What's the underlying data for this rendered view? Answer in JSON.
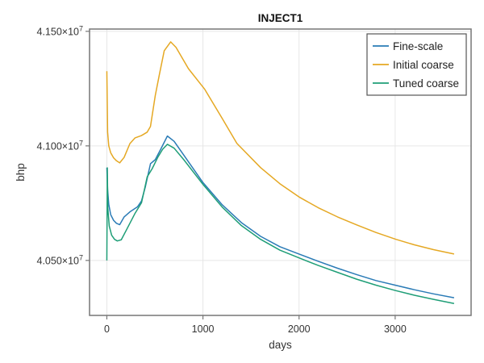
{
  "chart_data": {
    "type": "line",
    "title": "INJECT1",
    "xlabel": "days",
    "ylabel": "bhp",
    "xlim": [
      -180,
      3790
    ],
    "ylim": [
      40260000,
      41510000
    ],
    "xticks": [
      0,
      1000,
      2000,
      3000
    ],
    "xtick_labels": [
      "0",
      "1000",
      "2000",
      "3000"
    ],
    "yticks": [
      40500000,
      41000000,
      41500000
    ],
    "ytick_labels": [
      {
        "mantissa": "4.050",
        "exp": "7"
      },
      {
        "mantissa": "4.100",
        "exp": "7"
      },
      {
        "mantissa": "4.150",
        "exp": "7"
      }
    ],
    "grid": true,
    "legend_position": "top-right",
    "series": [
      {
        "name": "Fine-scale",
        "color": "#2a7bb6",
        "x": [
          0,
          8,
          20,
          40,
          70,
          100,
          134,
          180,
          240,
          319,
          361,
          400,
          454,
          504,
          560,
          630,
          700,
          800,
          1000,
          1200,
          1400,
          1600,
          1800,
          2000,
          2200,
          2400,
          2600,
          2800,
          3000,
          3200,
          3400,
          3613
        ],
        "y": [
          40905000,
          40810000,
          40745000,
          40700000,
          40675000,
          40662000,
          40656000,
          40690000,
          40712000,
          40734000,
          40760000,
          40820000,
          40922000,
          40940000,
          40985000,
          41043000,
          41020000,
          40960000,
          40840000,
          40743000,
          40665000,
          40605000,
          40560000,
          40528000,
          40496000,
          40466000,
          40438000,
          40412000,
          40392000,
          40372000,
          40354000,
          40337000
        ]
      },
      {
        "name": "Initial coarse",
        "color": "#e5a823",
        "x": [
          0,
          8,
          20,
          40,
          70,
          100,
          134,
          180,
          240,
          294,
          360,
          420,
          454,
          504,
          546,
          597,
          664,
          720,
          849,
          1017,
          1200,
          1353,
          1600,
          1800,
          2000,
          2200,
          2400,
          2600,
          2800,
          3008,
          3200,
          3400,
          3613
        ],
        "y": [
          41326000,
          41060000,
          41000000,
          40970000,
          40948000,
          40935000,
          40926000,
          40950000,
          41010000,
          41035000,
          41045000,
          41060000,
          41085000,
          41220000,
          41310000,
          41415000,
          41454000,
          41430000,
          41337000,
          41248000,
          41120000,
          41011000,
          40905000,
          40835000,
          40777000,
          40730000,
          40690000,
          40655000,
          40622000,
          40592000,
          40568000,
          40547000,
          40528000
        ]
      },
      {
        "name": "Tuned coarse",
        "color": "#1f9e77",
        "x": [
          0,
          5,
          10,
          25,
          50,
          80,
          109,
          150,
          200,
          294,
          361,
          420,
          471,
          530,
          580,
          630,
          700,
          800,
          1000,
          1200,
          1400,
          1600,
          1800,
          2000,
          2200,
          2400,
          2600,
          2800,
          3000,
          3200,
          3400,
          3613
        ],
        "y": [
          40500000,
          40904000,
          40730000,
          40650000,
          40610000,
          40592000,
          40585000,
          40590000,
          40630000,
          40706000,
          40752000,
          40865000,
          40900000,
          40950000,
          40985000,
          41007000,
          40990000,
          40940000,
          40832000,
          40733000,
          40652000,
          40592000,
          40545000,
          40511000,
          40478000,
          40448000,
          40418000,
          40392000,
          40369000,
          40348000,
          40330000,
          40312000
        ]
      }
    ]
  }
}
